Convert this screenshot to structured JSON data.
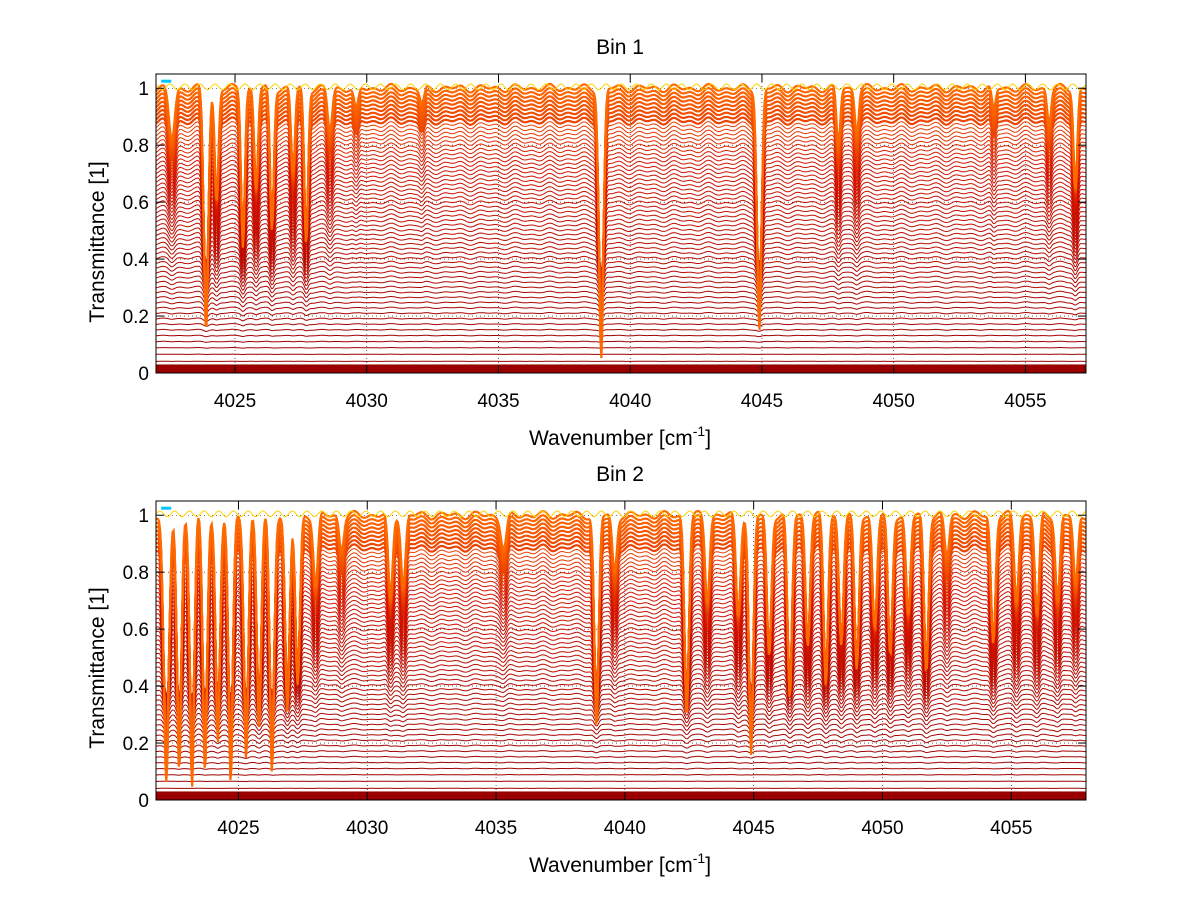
{
  "chart_data": [
    {
      "type": "line",
      "title": "Bin 1",
      "xlabel": "Wavenumber [cm",
      "xlabel_sup": "-1",
      "xlabel_close": "]",
      "ylabel": "Transmittance [1]",
      "xlim": [
        4022,
        4057.3
      ],
      "ylim": [
        0,
        1.05
      ],
      "xticks": [
        4025,
        4030,
        4035,
        4040,
        4045,
        4050,
        4055
      ],
      "yticks": [
        0,
        0.2,
        0.4,
        0.6,
        0.8,
        1
      ],
      "ytick_labels": [
        "0",
        "0.2",
        "0.4",
        "0.6",
        "0.8",
        "1"
      ],
      "grid": "dotted",
      "series_count": 60,
      "series_description": "Family of transmittance spectra, baseline levels from about 0.01 up to 1",
      "absorption_lines": [
        {
          "x": 4022.6,
          "depth": 0.18,
          "width": 0.15
        },
        {
          "x": 4023.9,
          "depth": 0.85,
          "width": 0.12
        },
        {
          "x": 4024.3,
          "depth": 0.4,
          "width": 0.1
        },
        {
          "x": 4025.3,
          "depth": 0.55,
          "width": 0.1
        },
        {
          "x": 4025.8,
          "depth": 0.35,
          "width": 0.1
        },
        {
          "x": 4026.4,
          "depth": 0.5,
          "width": 0.1
        },
        {
          "x": 4027.2,
          "depth": 0.3,
          "width": 0.1
        },
        {
          "x": 4027.7,
          "depth": 0.55,
          "width": 0.1
        },
        {
          "x": 4028.6,
          "depth": 0.15,
          "width": 0.12
        },
        {
          "x": 4029.6,
          "depth": 0.08,
          "width": 0.12
        },
        {
          "x": 4032.1,
          "depth": 0.06,
          "width": 0.12
        },
        {
          "x": 4038.9,
          "depth": 0.95,
          "width": 0.12
        },
        {
          "x": 4044.9,
          "depth": 0.85,
          "width": 0.12
        },
        {
          "x": 4047.9,
          "depth": 0.2,
          "width": 0.1
        },
        {
          "x": 4048.6,
          "depth": 0.15,
          "width": 0.1
        },
        {
          "x": 4053.8,
          "depth": 0.08,
          "width": 0.1
        },
        {
          "x": 4055.9,
          "depth": 0.12,
          "width": 0.1
        },
        {
          "x": 4056.9,
          "depth": 0.35,
          "width": 0.1
        }
      ]
    },
    {
      "type": "line",
      "title": "Bin 2",
      "xlabel": "Wavenumber [cm",
      "xlabel_sup": "-1",
      "xlabel_close": "]",
      "ylabel": "Transmittance [1]",
      "xlim": [
        4021.8,
        4057.9
      ],
      "ylim": [
        0,
        1.05
      ],
      "xticks": [
        4025,
        4030,
        4035,
        4040,
        4045,
        4050,
        4055
      ],
      "yticks": [
        0,
        0.2,
        0.4,
        0.6,
        0.8,
        1
      ],
      "ytick_labels": [
        "0",
        "0.2",
        "0.4",
        "0.6",
        "0.8",
        "1"
      ],
      "grid": "dotted",
      "series_count": 60,
      "series_description": "Family of transmittance spectra, baseline levels from about 0.01 up to 1",
      "absorption_lines": [
        {
          "x": 4022.2,
          "depth": 0.95,
          "width": 0.14
        },
        {
          "x": 4022.7,
          "depth": 0.9,
          "width": 0.12
        },
        {
          "x": 4023.2,
          "depth": 0.95,
          "width": 0.12
        },
        {
          "x": 4023.7,
          "depth": 0.9,
          "width": 0.12
        },
        {
          "x": 4024.2,
          "depth": 0.8,
          "width": 0.12
        },
        {
          "x": 4024.7,
          "depth": 0.95,
          "width": 0.12
        },
        {
          "x": 4025.3,
          "depth": 0.85,
          "width": 0.12
        },
        {
          "x": 4025.8,
          "depth": 0.75,
          "width": 0.12
        },
        {
          "x": 4026.3,
          "depth": 0.9,
          "width": 0.12
        },
        {
          "x": 4026.9,
          "depth": 0.7,
          "width": 0.12
        },
        {
          "x": 4027.3,
          "depth": 0.6,
          "width": 0.12
        },
        {
          "x": 4028.0,
          "depth": 0.25,
          "width": 0.12
        },
        {
          "x": 4029.0,
          "depth": 0.12,
          "width": 0.12
        },
        {
          "x": 4030.9,
          "depth": 0.3,
          "width": 0.12
        },
        {
          "x": 4031.4,
          "depth": 0.25,
          "width": 0.12
        },
        {
          "x": 4035.3,
          "depth": 0.12,
          "width": 0.15
        },
        {
          "x": 4038.9,
          "depth": 0.75,
          "width": 0.12
        },
        {
          "x": 4039.6,
          "depth": 0.2,
          "width": 0.12
        },
        {
          "x": 4042.4,
          "depth": 0.7,
          "width": 0.12
        },
        {
          "x": 4043.2,
          "depth": 0.3,
          "width": 0.12
        },
        {
          "x": 4044.4,
          "depth": 0.35,
          "width": 0.12
        },
        {
          "x": 4044.9,
          "depth": 0.85,
          "width": 0.12
        },
        {
          "x": 4045.6,
          "depth": 0.5,
          "width": 0.12
        },
        {
          "x": 4046.4,
          "depth": 0.65,
          "width": 0.12
        },
        {
          "x": 4047.1,
          "depth": 0.45,
          "width": 0.12
        },
        {
          "x": 4047.8,
          "depth": 0.6,
          "width": 0.12
        },
        {
          "x": 4048.4,
          "depth": 0.45,
          "width": 0.12
        },
        {
          "x": 4049.0,
          "depth": 0.55,
          "width": 0.12
        },
        {
          "x": 4049.7,
          "depth": 0.4,
          "width": 0.12
        },
        {
          "x": 4050.3,
          "depth": 0.5,
          "width": 0.12
        },
        {
          "x": 4051.0,
          "depth": 0.35,
          "width": 0.12
        },
        {
          "x": 4051.7,
          "depth": 0.55,
          "width": 0.12
        },
        {
          "x": 4052.5,
          "depth": 0.15,
          "width": 0.12
        },
        {
          "x": 4054.3,
          "depth": 0.45,
          "width": 0.12
        },
        {
          "x": 4055.2,
          "depth": 0.3,
          "width": 0.12
        },
        {
          "x": 4056.0,
          "depth": 0.35,
          "width": 0.12
        },
        {
          "x": 4056.8,
          "depth": 0.3,
          "width": 0.12
        },
        {
          "x": 4057.5,
          "depth": 0.25,
          "width": 0.12
        }
      ]
    }
  ],
  "colors": {
    "line_dark": "#9a0000",
    "line_mid": "#d31400",
    "line_top": "#ff6a00",
    "top_accent_yellow": "#ffd200",
    "top_accent_cyan": "#00c8ff",
    "axis": "#000000",
    "grid": "#000000"
  }
}
